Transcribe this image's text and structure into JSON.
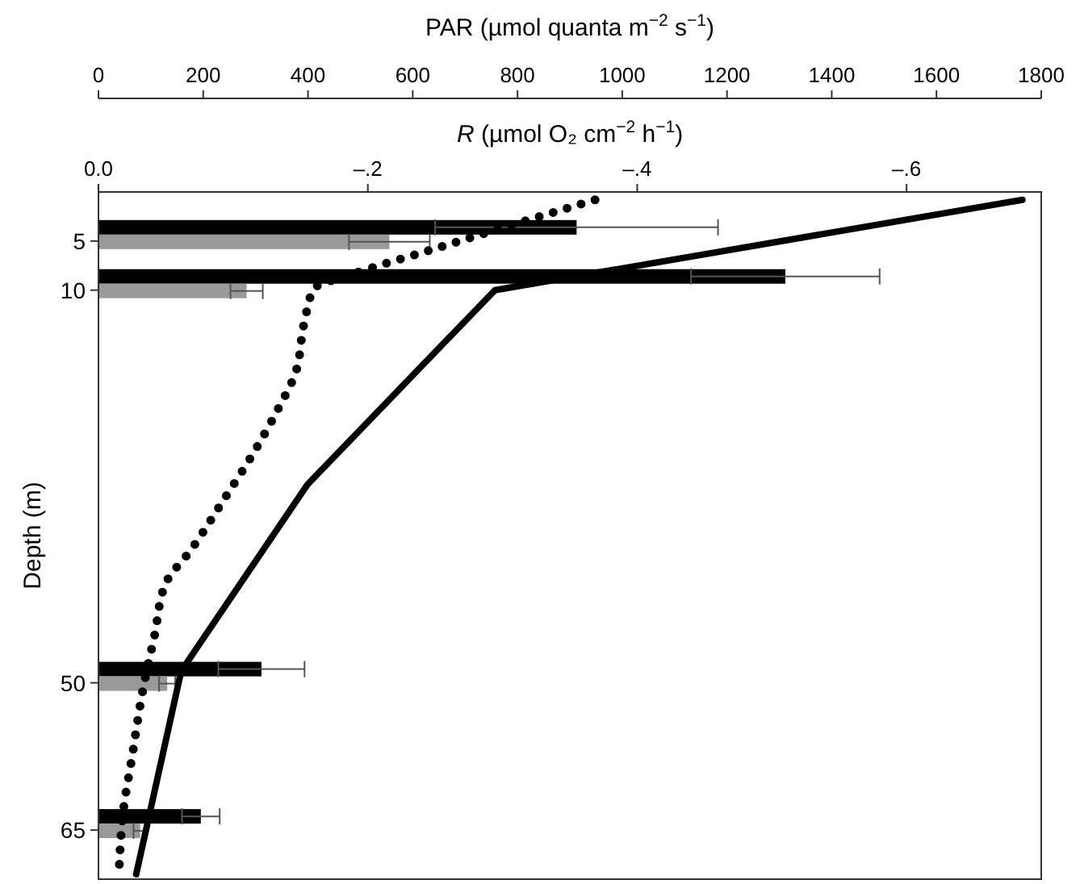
{
  "chart_data": {
    "type": "bar",
    "orientation": "horizontal",
    "xlabel": "R (µmol O₂ cm$^{−2}$ h$^{−1}$)",
    "x2label": "PAR (µmol quanta m$^{−2}$ s$^{−1}$)",
    "ylabel": "Depth (m)",
    "xlim": [
      0,
      -0.7
    ],
    "xticks": [
      {
        "value": 0,
        "label": "0.0"
      },
      {
        "value": -0.2,
        "label": "–.2"
      },
      {
        "value": -0.4,
        "label": "–.4"
      },
      {
        "value": -0.6,
        "label": "–.6"
      }
    ],
    "x2lim": [
      0,
      1800
    ],
    "x2ticks": [
      0,
      200,
      400,
      600,
      800,
      1000,
      1200,
      1400,
      1600,
      1800
    ],
    "ylim": [
      70,
      0
    ],
    "yticks": [
      5,
      10,
      50,
      65
    ],
    "grid": false,
    "series": [
      {
        "color": "#000000",
        "x": [
          5,
          10,
          50,
          65
        ],
        "values": [
          -0.355,
          -0.51,
          -0.121,
          -0.076
        ],
        "errors": [
          0.105,
          0.07,
          0.032,
          0.014
        ]
      },
      {
        "color": "#999999",
        "x": [
          5,
          10,
          50,
          65
        ],
        "values": [
          -0.216,
          -0.11,
          -0.051,
          -0.031
        ],
        "errors": [
          0.03,
          0.012,
          0.006,
          0.005
        ]
      },
      {
        "type": "line",
        "axis": "x2",
        "color": "#000000",
        "line_style": "solid",
        "marker": "none",
        "x": [
          0.8,
          10,
          29.8,
          48.8,
          69.5
        ],
        "values": [
          1764,
          757,
          399,
          158,
          72
        ]
      },
      {
        "type": "line",
        "axis": "x2",
        "color": "#000000",
        "line_style": "dotted",
        "marker": "none",
        "x": [
          0.8,
          3.4,
          5.9,
          8.5,
          9.8,
          13.3,
          18.6,
          22.1,
          26.4,
          31.2,
          36.5,
          39.9,
          45.2,
          50.1,
          57.9,
          62.8,
          69.5
        ],
        "values": [
          948,
          787,
          635,
          477,
          412,
          393,
          375,
          343,
          298,
          241,
          176,
          128,
          107,
          87,
          63,
          48,
          39
        ]
      }
    ]
  }
}
